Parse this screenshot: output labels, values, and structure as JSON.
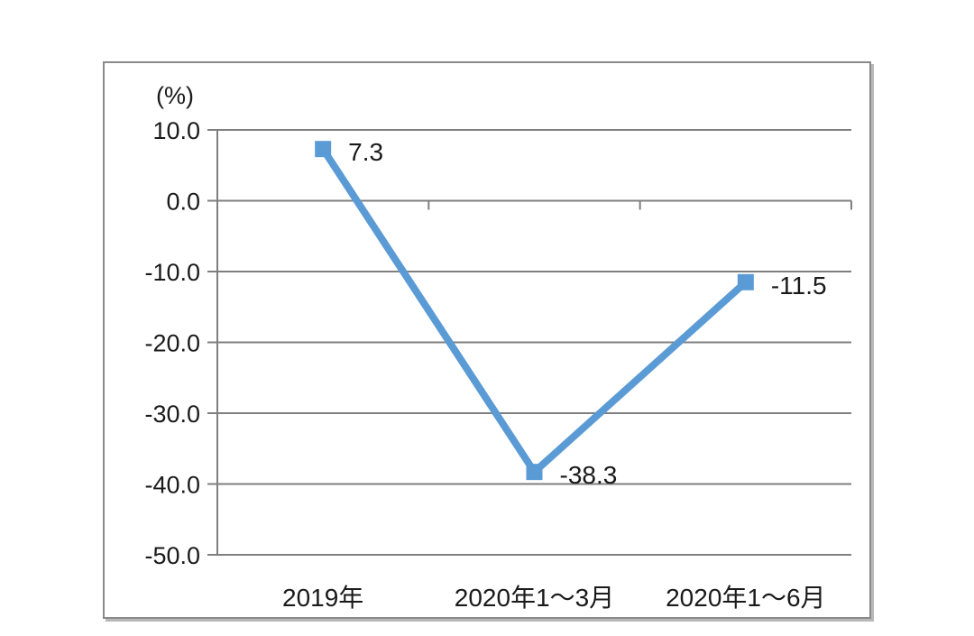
{
  "chart_data": {
    "type": "line",
    "title": "",
    "unit_label": "(%)",
    "categories": [
      "2019年",
      "2020年1～3月",
      "2020年1～6月"
    ],
    "values": [
      7.3,
      -38.3,
      -11.5
    ],
    "data_labels": [
      "7.3",
      "-38.3",
      "-11.5"
    ],
    "ylim": [
      -50,
      10
    ],
    "ytick_step": 10,
    "ytick_labels": [
      "10.0",
      "0.0",
      "-10.0",
      "-20.0",
      "-30.0",
      "-40.0",
      "-50.0"
    ],
    "grid": true,
    "legend": "none",
    "category_axis_at_value": 0,
    "colors": {
      "line": "#5B9BD5",
      "marker": "#5B9BD5",
      "gridline": "#7F7F7F",
      "axis": "#7F7F7F",
      "text": "#1a1a1a",
      "frame_border": "#8a8a8a"
    }
  }
}
